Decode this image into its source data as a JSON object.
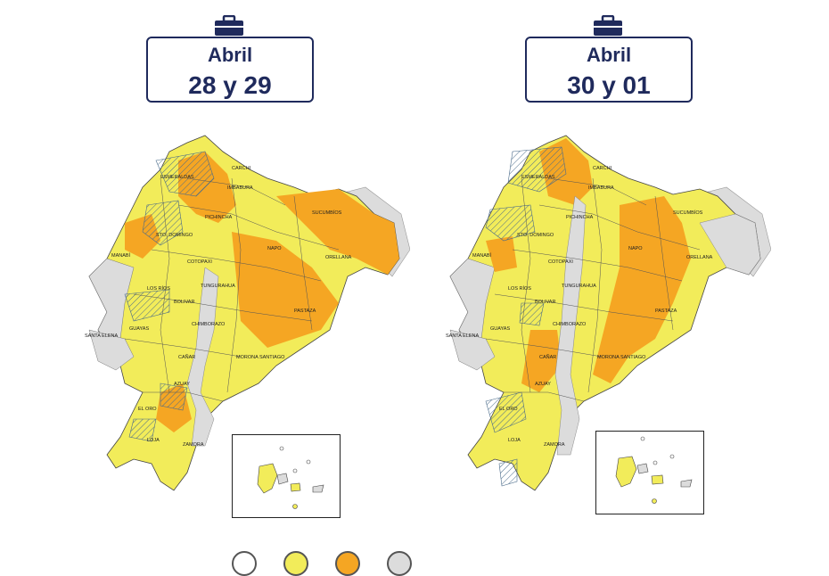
{
  "panels": [
    {
      "month": "Abril",
      "days": "28 y 29",
      "provinces": {
        "esmeraldas": "ESMERALDAS",
        "carchi": "CARCHI",
        "imbabura": "IMBABURA",
        "sucumbios": "SUCUMBÍOS",
        "pichincha": "PICHINCHA",
        "sto_domingo": "STO. DOMINGO",
        "manabi": "MANABÍ",
        "napo": "NAPO",
        "orellana": "ORELLANA",
        "cotopaxi": "COTOPAXI",
        "los_rios": "LOS RÍOS",
        "tungurahua": "TUNGURAHUA",
        "bolivar": "BOLIVAR",
        "pastaza": "PASTAZA",
        "chimborazo": "CHIMBORAZO",
        "santa_elena": "SANTA ELENA",
        "guayas": "GUAYAS",
        "morona": "MORONA SANTIAGO",
        "canar": "CAÑAR",
        "azuay": "AZUAY",
        "el_oro": "EL ORO",
        "loja": "LOJA",
        "zamora": "ZAMORA"
      }
    },
    {
      "month": "Abril",
      "days": "30 y 01",
      "provinces": {
        "esmeraldas": "ESMERALDAS",
        "carchi": "CARCHI",
        "imbabura": "IMBABURA",
        "sucumbios": "SUCUMBÍOS",
        "pichincha": "PICHINCHA",
        "sto_domingo": "STO. DOMINGO",
        "manabi": "MANABÍ",
        "napo": "NAPO",
        "orellana": "ORELLANA",
        "cotopaxi": "COTOPAXI",
        "los_rios": "LOS RÍOS",
        "tungurahua": "TUNGURAHUA",
        "bolivar": "BOLIVAR",
        "pastaza": "PASTAZA",
        "chimborazo": "CHIMBORAZO",
        "santa_elena": "SANTA ELENA",
        "guayas": "GUAYAS",
        "morona": "MORONA SANTIAGO",
        "canar": "CAÑAR",
        "azuay": "AZUAY",
        "el_oro": "EL ORO",
        "loja": "LOJA",
        "zamora": "ZAMORA"
      }
    }
  ],
  "colors": {
    "navy": "#1f2a5c",
    "yellow": "#f2ec5a",
    "orange": "#f5a623",
    "gray": "#dcdcdc",
    "hatch": "#4a6b8a"
  },
  "icons": {
    "briefcase": "briefcase-icon"
  }
}
